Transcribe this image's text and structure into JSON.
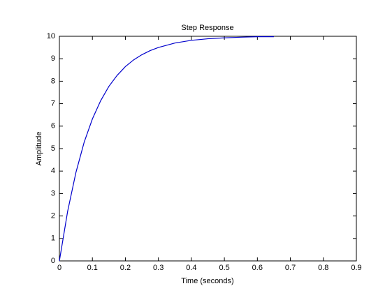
{
  "chart_data": {
    "type": "line",
    "title": "Step Response",
    "x_label": "Time (seconds)",
    "y_label": "Amplitude",
    "x": [
      0,
      0.025,
      0.05,
      0.075,
      0.1,
      0.125,
      0.15,
      0.175,
      0.2,
      0.225,
      0.25,
      0.275,
      0.3,
      0.35,
      0.4,
      0.45,
      0.5,
      0.55,
      0.6,
      0.65
    ],
    "values": [
      0,
      2.21,
      3.93,
      5.28,
      6.32,
      7.13,
      7.77,
      8.26,
      8.65,
      8.95,
      9.18,
      9.36,
      9.5,
      9.7,
      9.82,
      9.89,
      9.93,
      9.96,
      9.98,
      9.98
    ],
    "color": "#0000cc",
    "xlim": [
      0,
      0.9
    ],
    "xticks": [
      0,
      0.1,
      0.2,
      0.3,
      0.4,
      0.5,
      0.6,
      0.7,
      0.8,
      0.9
    ],
    "ylim": [
      0,
      10
    ],
    "yticks": [
      0,
      1,
      2,
      3,
      4,
      5,
      6,
      7,
      8,
      9,
      10
    ],
    "grid": false
  }
}
